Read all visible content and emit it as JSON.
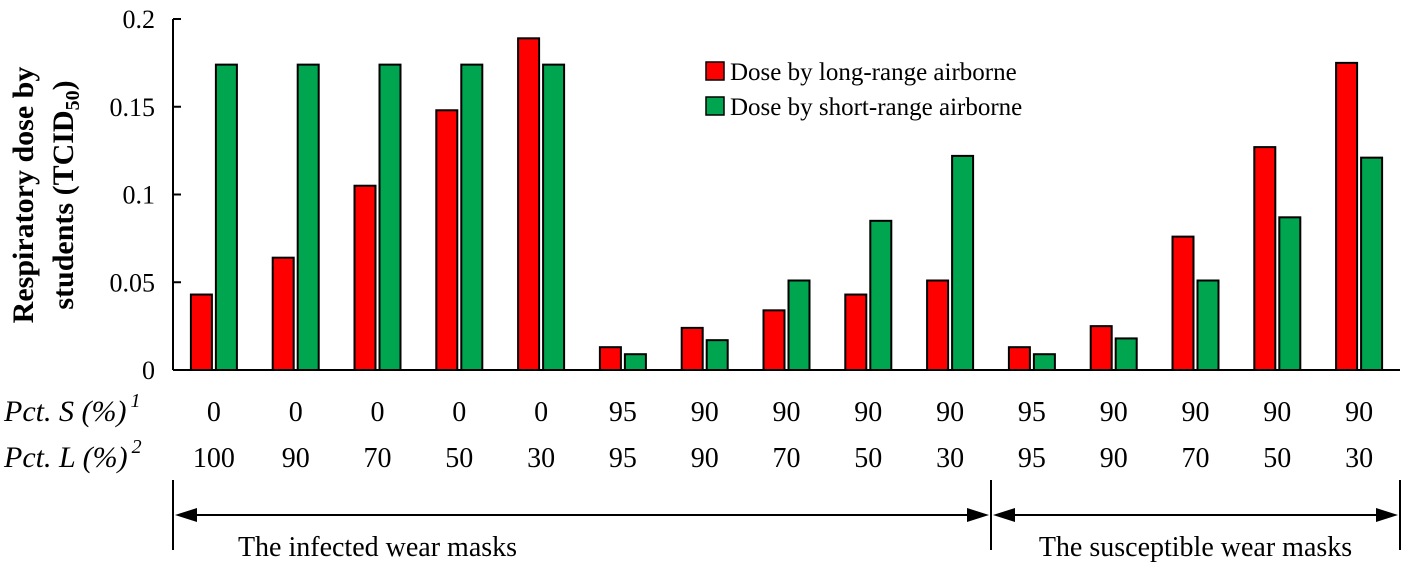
{
  "chart_data": {
    "type": "bar",
    "ylabel_line1": "Respiratory dose by",
    "ylabel_line2_prefix": "students (TCID",
    "ylabel_line2_sub": "50",
    "ylabel_line2_suffix": ")",
    "ylim": [
      0,
      0.2
    ],
    "yticks": [
      0,
      0.05,
      0.1,
      0.15,
      0.2
    ],
    "ytick_labels": [
      "0",
      "0.05",
      "0.1",
      "0.15",
      "0.2"
    ],
    "grid": false,
    "legend_position": "top-right",
    "series": [
      {
        "name": "Dose by long-range airborne",
        "color": "#ff0000",
        "values": [
          0.043,
          0.064,
          0.105,
          0.148,
          0.189,
          0.013,
          0.024,
          0.034,
          0.043,
          0.051,
          0.013,
          0.025,
          0.076,
          0.127,
          0.175
        ]
      },
      {
        "name": "Dose by short-range airborne",
        "color": "#00a550",
        "values": [
          0.174,
          0.174,
          0.174,
          0.174,
          0.174,
          0.009,
          0.017,
          0.051,
          0.085,
          0.122,
          0.009,
          0.018,
          0.051,
          0.087,
          0.121
        ]
      }
    ],
    "row1_label": "Pct. S (%)",
    "row1_footnote": "1",
    "row1_values": [
      "0",
      "0",
      "0",
      "0",
      "0",
      "95",
      "90",
      "90",
      "90",
      "90",
      "95",
      "90",
      "90",
      "90",
      "90"
    ],
    "row2_label": "Pct. L (%)",
    "row2_footnote": "2",
    "row2_values": [
      "100",
      "90",
      "70",
      "50",
      "30",
      "95",
      "90",
      "70",
      "50",
      "30",
      "95",
      "90",
      "70",
      "50",
      "30"
    ],
    "groups": [
      {
        "label": "The infected wear masks",
        "start": 0,
        "end": 5
      },
      {
        "label": "The susceptible wear masks",
        "start": 10,
        "end": 15
      }
    ]
  }
}
